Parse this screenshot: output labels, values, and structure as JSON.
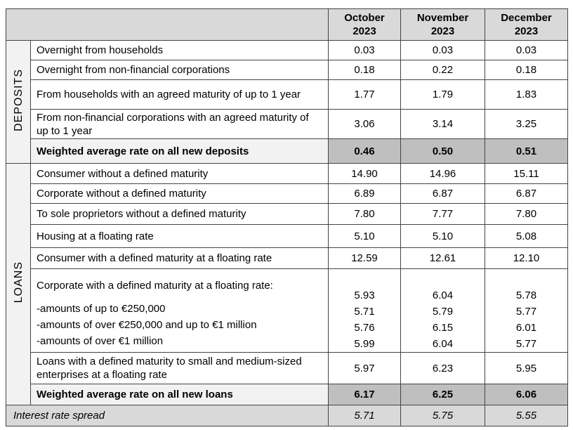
{
  "header": {
    "columns": [
      "October 2023",
      "November 2023",
      "December 2023"
    ]
  },
  "sections": [
    {
      "label": "DEPOSITS",
      "rows": [
        {
          "label": "Overnight from households",
          "values": [
            "0.03",
            "0.03",
            "0.03"
          ]
        },
        {
          "label": "Overnight from non-financial corporations",
          "values": [
            "0.18",
            "0.22",
            "0.18"
          ]
        },
        {
          "label": "From households with an agreed maturity of up to 1 year",
          "values": [
            "1.77",
            "1.79",
            "1.83"
          ]
        },
        {
          "label": "From non-financial corporations with an agreed maturity of up to 1 year",
          "values": [
            "3.06",
            "3.14",
            "3.25"
          ]
        }
      ],
      "total": {
        "label": "Weighted average rate on all new deposits",
        "values": [
          "0.46",
          "0.50",
          "0.51"
        ]
      }
    },
    {
      "label": "LOANS",
      "rows": [
        {
          "label": "Consumer without a defined maturity",
          "values": [
            "14.90",
            "14.96",
            "15.11"
          ]
        },
        {
          "label": "Corporate without a defined maturity",
          "values": [
            "6.89",
            "6.87",
            "6.87"
          ]
        },
        {
          "label": "To sole proprietors without a defined maturity",
          "values": [
            "7.80",
            "7.77",
            "7.80"
          ]
        },
        {
          "label": "Housing at a floating rate",
          "values": [
            "5.10",
            "5.10",
            "5.08"
          ]
        },
        {
          "label": "Consumer with a defined maturity at a floating rate",
          "values": [
            "12.59",
            "12.61",
            "12.10"
          ]
        },
        {
          "label": "Corporate with a defined maturity at a floating rate:",
          "values": [
            "5.93",
            "6.04",
            "5.78"
          ],
          "sublines": [
            {
              "label": "-amounts of up to €250,000",
              "values": [
                "5.71",
                "5.79",
                "5.77"
              ]
            },
            {
              "label": "-amounts of over €250,000 and up to €1 million",
              "values": [
                "5.76",
                "6.15",
                "6.01"
              ]
            },
            {
              "label": "-amounts of over €1 million",
              "values": [
                "5.99",
                "6.04",
                "5.77"
              ]
            }
          ]
        },
        {
          "label": "Loans with a defined maturity to small and medium-sized enterprises at a floating rate",
          "values": [
            "5.97",
            "6.23",
            "5.95"
          ]
        }
      ],
      "total": {
        "label": "Weighted average rate on all new loans",
        "values": [
          "6.17",
          "6.25",
          "6.06"
        ]
      }
    }
  ],
  "spread": {
    "label": "Interest rate spread",
    "values": [
      "5.71",
      "5.75",
      "5.55"
    ]
  }
}
